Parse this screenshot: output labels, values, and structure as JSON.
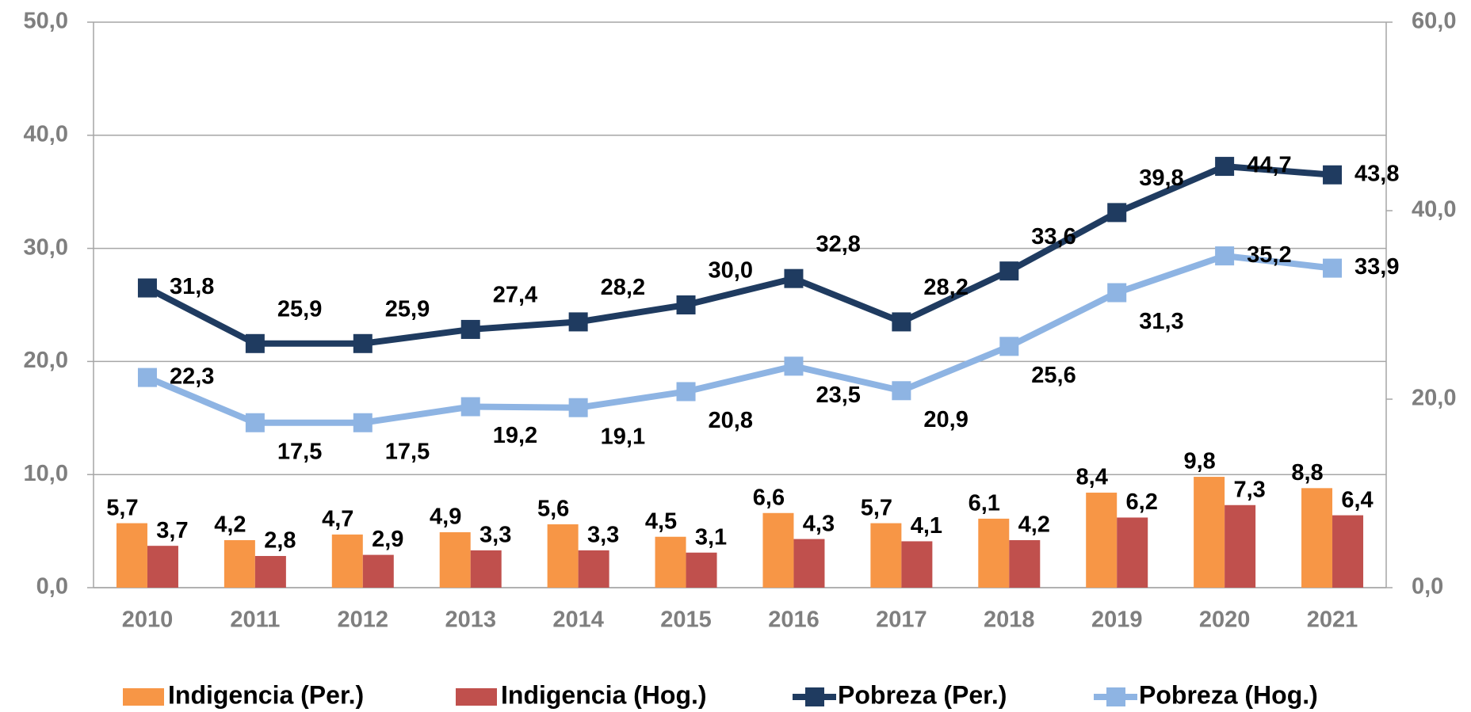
{
  "chart_data": {
    "type": "bar-line",
    "categories": [
      "2010",
      "2011",
      "2012",
      "2013",
      "2014",
      "2015",
      "2016",
      "2017",
      "2018",
      "2019",
      "2020",
      "2021"
    ],
    "ylim": [
      0,
      50
    ],
    "yticks": [
      {
        "value": 0,
        "label": "0,0"
      },
      {
        "value": 10,
        "label": "10,0"
      },
      {
        "value": 20,
        "label": "20,0"
      },
      {
        "value": 30,
        "label": "30,0"
      },
      {
        "value": 40,
        "label": "40,0"
      },
      {
        "value": 50,
        "label": "50,0"
      }
    ],
    "y2lim": [
      0,
      60
    ],
    "y2ticks": [
      {
        "value": 0,
        "label": "0,0"
      },
      {
        "value": 20,
        "label": "20,0"
      },
      {
        "value": 40,
        "label": "40,0"
      },
      {
        "value": 60,
        "label": "60,0"
      }
    ],
    "grid": true,
    "legend": "bottom",
    "series": [
      {
        "name": "Indigencia (Per.)",
        "type": "bar",
        "color": "#f79646",
        "values": [
          5.7,
          4.2,
          4.7,
          4.9,
          5.6,
          4.5,
          6.6,
          5.7,
          6.1,
          8.4,
          9.8,
          8.8
        ],
        "value_labels": [
          "5,7",
          "4,2",
          "4,7",
          "4,9",
          "5,6",
          "4,5",
          "6,6",
          "5,7",
          "6,1",
          "8,4",
          "9,8",
          "8,8"
        ]
      },
      {
        "name": "Indigencia (Hog.)",
        "type": "bar",
        "color": "#c0504d",
        "values": [
          3.7,
          2.8,
          2.9,
          3.3,
          3.3,
          3.1,
          4.3,
          4.1,
          4.2,
          6.2,
          7.3,
          6.4
        ],
        "value_labels": [
          "3,7",
          "2,8",
          "2,9",
          "3,3",
          "3,3",
          "3,1",
          "4,3",
          "4,1",
          "4,2",
          "6,2",
          "7,3",
          "6,4"
        ]
      },
      {
        "name": "Pobreza (Per.)",
        "type": "line",
        "axis": "y2",
        "color": "#1f3b60",
        "values": [
          31.8,
          25.9,
          25.9,
          27.4,
          28.2,
          30.0,
          32.8,
          28.2,
          33.6,
          39.8,
          44.7,
          43.8
        ],
        "value_labels": [
          "31,8",
          "25,9",
          "25,9",
          "27,4",
          "28,2",
          "30,0",
          "32,8",
          "28,2",
          "33,6",
          "39,8",
          "44,7",
          "43,8"
        ]
      },
      {
        "name": "Pobreza (Hog.)",
        "type": "line",
        "axis": "y2",
        "color": "#8eb4e3",
        "values": [
          22.3,
          17.5,
          17.5,
          19.2,
          19.1,
          20.8,
          23.5,
          20.9,
          25.6,
          31.3,
          35.2,
          33.9
        ],
        "value_labels": [
          "22,3",
          "17,5",
          "17,5",
          "19,2",
          "19,1",
          "20,8",
          "23,5",
          "20,9",
          "25,6",
          "31,3",
          "35,2",
          "33,9"
        ]
      }
    ]
  }
}
